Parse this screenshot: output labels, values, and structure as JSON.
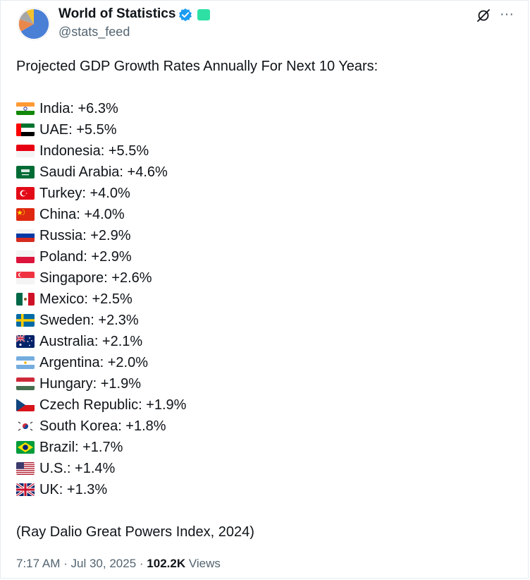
{
  "header": {
    "display_name": "World of Statistics",
    "handle": "@stats_feed",
    "avatar_icon": "pie-chart-avatar-icon",
    "verified_icon": "verified-badge-icon",
    "affiliate_badge_icon": "affiliate-badge-icon",
    "grok_icon": "grok-icon",
    "more_icon": "more-icon",
    "more_glyph": "···"
  },
  "post": {
    "intro": "Projected GDP Growth Rates Annually For Next 10 Years:",
    "items": [
      {
        "country": "India",
        "value": "+6.3%",
        "label": "India: +6.3%",
        "flag": "india-flag-icon"
      },
      {
        "country": "UAE",
        "value": "+5.5%",
        "label": "UAE: +5.5%",
        "flag": "uae-flag-icon"
      },
      {
        "country": "Indonesia",
        "value": "+5.5%",
        "label": "Indonesia: +5.5%",
        "flag": "indonesia-flag-icon"
      },
      {
        "country": "Saudi Arabia",
        "value": "+4.6%",
        "label": "Saudi Arabia: +4.6%",
        "flag": "saudi-arabia-flag-icon"
      },
      {
        "country": "Turkey",
        "value": "+4.0%",
        "label": "Turkey: +4.0%",
        "flag": "turkey-flag-icon"
      },
      {
        "country": "China",
        "value": "+4.0%",
        "label": "China: +4.0%",
        "flag": "china-flag-icon"
      },
      {
        "country": "Russia",
        "value": "+2.9%",
        "label": "Russia: +2.9%",
        "flag": "russia-flag-icon"
      },
      {
        "country": "Poland",
        "value": "+2.9%",
        "label": "Poland: +2.9%",
        "flag": "poland-flag-icon"
      },
      {
        "country": "Singapore",
        "value": "+2.6%",
        "label": "Singapore: +2.6%",
        "flag": "singapore-flag-icon"
      },
      {
        "country": "Mexico",
        "value": "+2.5%",
        "label": "Mexico: +2.5%",
        "flag": "mexico-flag-icon"
      },
      {
        "country": "Sweden",
        "value": "+2.3%",
        "label": "Sweden: +2.3%",
        "flag": "sweden-flag-icon"
      },
      {
        "country": "Australia",
        "value": "+2.1%",
        "label": "Australia: +2.1%",
        "flag": "australia-flag-icon"
      },
      {
        "country": "Argentina",
        "value": "+2.0%",
        "label": "Argentina: +2.0%",
        "flag": "argentina-flag-icon"
      },
      {
        "country": "Hungary",
        "value": "+1.9%",
        "label": "Hungary: +1.9%",
        "flag": "hungary-flag-icon"
      },
      {
        "country": "Czech Republic",
        "value": "+1.9%",
        "label": "Czech Republic: +1.9%",
        "flag": "czech-republic-flag-icon"
      },
      {
        "country": "South Korea",
        "value": "+1.8%",
        "label": "South Korea: +1.8%",
        "flag": "south-korea-flag-icon"
      },
      {
        "country": "Brazil",
        "value": "+1.7%",
        "label": "Brazil: +1.7%",
        "flag": "brazil-flag-icon"
      },
      {
        "country": "U.S.",
        "value": "+1.4%",
        "label": "U.S.: +1.4%",
        "flag": "us-flag-icon"
      },
      {
        "country": "UK",
        "value": "+1.3%",
        "label": "UK: +1.3%",
        "flag": "uk-flag-icon"
      }
    ],
    "source": "(Ray Dalio Great Powers Index, 2024)"
  },
  "meta": {
    "time": "7:17 AM",
    "separator": "·",
    "date": "Jul 30, 2025",
    "views_count": "102.2K",
    "views_label": "Views"
  },
  "colors": {
    "text": "#0f1419",
    "secondary_text": "#536471",
    "verified_blue": "#1d9bf0",
    "affiliate_green": "#2fe0a5"
  }
}
